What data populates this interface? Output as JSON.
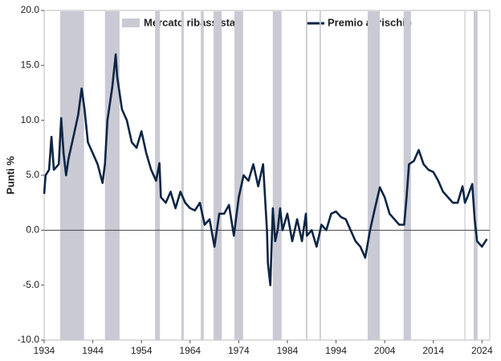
{
  "chart_data": {
    "type": "line",
    "y_label": "Punti %",
    "xlim": [
      1934,
      2025.6
    ],
    "xticks": [
      1934,
      1944,
      1954,
      1964,
      1974,
      1984,
      1994,
      2004,
      2014,
      2024
    ],
    "ylim": [
      -10,
      20
    ],
    "yticks": [
      {
        "value": -10,
        "label": "-10.0"
      },
      {
        "value": -5,
        "label": "-5.0"
      },
      {
        "value": 0,
        "label": "0.0"
      },
      {
        "value": 5,
        "label": "5.0"
      },
      {
        "value": 10,
        "label": "10.0"
      },
      {
        "value": 15,
        "label": "15.0"
      },
      {
        "value": 20,
        "label": "20.0"
      }
    ],
    "bands": {
      "name": "Mercato ribassista",
      "color": "#c9cad4",
      "periods": [
        [
          1937.3,
          1942.2
        ],
        [
          1946.5,
          1949.5
        ],
        [
          1956.8,
          1957.8
        ],
        [
          1962.2,
          1962.7
        ],
        [
          1966.2,
          1966.8
        ],
        [
          1968.8,
          1970.5
        ],
        [
          1973.1,
          1974.9
        ],
        [
          1981,
          1982.8
        ],
        [
          1987.8,
          1988.1
        ],
        [
          1990.6,
          1990.9
        ],
        [
          2000.5,
          2003
        ],
        [
          2007.9,
          2009.4
        ],
        [
          2020.4,
          2020.6
        ],
        [
          2022.3,
          2023.1
        ]
      ]
    },
    "series": [
      {
        "name": "Premio al rischio",
        "color": "#0d2545",
        "x": [
          1934,
          1934.3,
          1935,
          1935.5,
          1936,
          1937,
          1937.5,
          1938,
          1938.5,
          1939,
          1940,
          1941,
          1941.7,
          1942.3,
          1943,
          1944,
          1945,
          1946,
          1946.5,
          1947,
          1948,
          1948.7,
          1949,
          1950,
          1951,
          1952,
          1953,
          1954,
          1955,
          1956,
          1957,
          1957.7,
          1958,
          1959,
          1960,
          1961,
          1962,
          1963,
          1964,
          1965,
          1966,
          1967,
          1968,
          1969,
          1970,
          1971,
          1972,
          1973,
          1974,
          1975,
          1976,
          1977,
          1978,
          1979,
          1979.8,
          1980,
          1980.5,
          1981,
          1981.5,
          1982,
          1982.5,
          1983,
          1984,
          1985,
          1986,
          1987,
          1987.8,
          1988,
          1989,
          1990,
          1991,
          1992,
          1993,
          1994,
          1995,
          1996,
          1997,
          1998,
          1999,
          2000,
          2001,
          2002,
          2003,
          2004,
          2005,
          2006,
          2007,
          2008,
          2008.5,
          2009,
          2010,
          2011,
          2012,
          2013,
          2014,
          2015,
          2016,
          2017,
          2018,
          2019,
          2020,
          2020.5,
          2021,
          2022,
          2022.5,
          2023,
          2024,
          2025
        ],
        "values": [
          3.3,
          5,
          5.5,
          8.5,
          5.5,
          6,
          10.2,
          7,
          5,
          6.5,
          8.5,
          10.5,
          12.9,
          11,
          8,
          7,
          6,
          4.3,
          6,
          10,
          13,
          16,
          14,
          11,
          10,
          8,
          7.5,
          9,
          7,
          5.5,
          4.5,
          6.1,
          3,
          2.5,
          3.5,
          2,
          3.5,
          2.5,
          2,
          1.8,
          2.5,
          0.5,
          1,
          -1.5,
          1.5,
          1.5,
          2.3,
          -0.5,
          3,
          5,
          4.5,
          6,
          4,
          6,
          0,
          -3,
          -5,
          2,
          -1,
          0,
          2,
          0,
          1.5,
          -1,
          1,
          -1,
          1.5,
          -0.5,
          0,
          -1.5,
          0.5,
          0,
          1.5,
          1.7,
          1.2,
          1,
          0,
          -1,
          -1.5,
          -2.5,
          0,
          2,
          3.9,
          3,
          1.5,
          1,
          0.5,
          0.5,
          3,
          6,
          6.3,
          7.3,
          6,
          5.5,
          5.3,
          4.5,
          3.5,
          3,
          2.5,
          2.5,
          4,
          2.5,
          3,
          4.2,
          1,
          -1,
          -1.5,
          -0.8
        ]
      }
    ]
  }
}
